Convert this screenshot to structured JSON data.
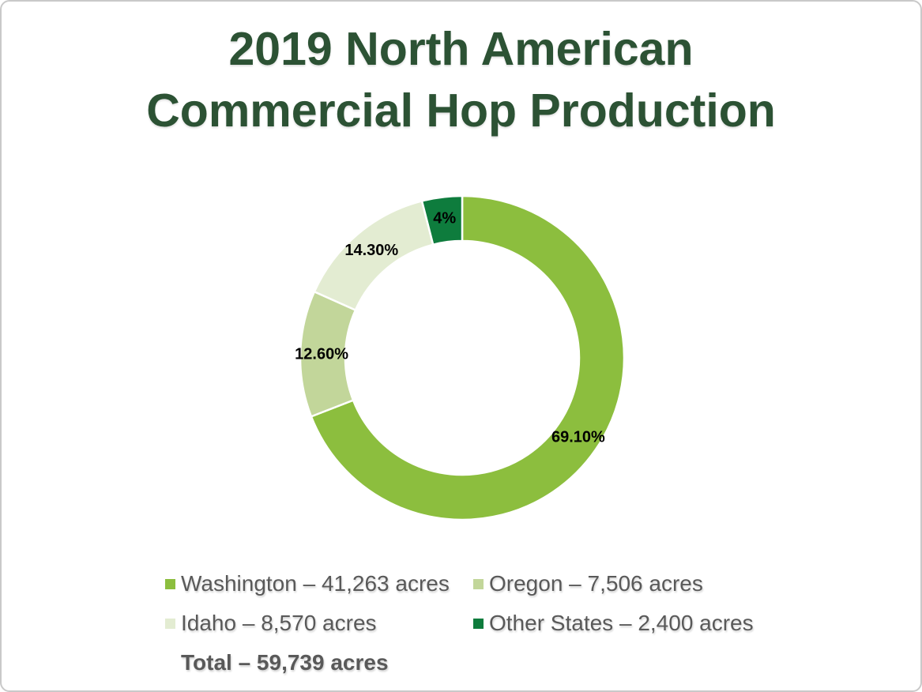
{
  "slide": {
    "title": "2019 North American Commercial Hop Production",
    "title_color": "#2C5234",
    "background_color": "#ffffff",
    "border_color": "#c9c9c9"
  },
  "chart_data": {
    "type": "pie",
    "subtype": "donut",
    "title": "2019 North American Commercial Hop Production",
    "units": "acres",
    "start_angle_deg": 0,
    "direction": "clockwise",
    "inner_radius_ratio": 0.72,
    "label_color": "#000000",
    "separator_color": "#ffffff",
    "series": [
      {
        "name": "Washington",
        "acres": 41263,
        "percent": 69.1,
        "slice_label": "69.10%",
        "color": "#8CBE3E",
        "legend_label": "Washington – 41,263 acres"
      },
      {
        "name": "Oregon",
        "acres": 7506,
        "percent": 12.6,
        "slice_label": "12.60%",
        "color": "#C2D69A",
        "legend_label": "Oregon – 7,506 acres"
      },
      {
        "name": "Idaho",
        "acres": 8570,
        "percent": 14.3,
        "slice_label": "14.30%",
        "color": "#E3ECD2",
        "legend_label": "Idaho – 8,570 acres"
      },
      {
        "name": "Other States",
        "acres": 2400,
        "percent": 4.0,
        "slice_label": "4%",
        "color": "#0E7C3D",
        "legend_label": "Other States – 2,400 acres"
      }
    ],
    "total_acres": 59739,
    "total_label": "Total – 59,739 acres",
    "legend_position": "bottom",
    "legend_text_color": "#595959"
  }
}
